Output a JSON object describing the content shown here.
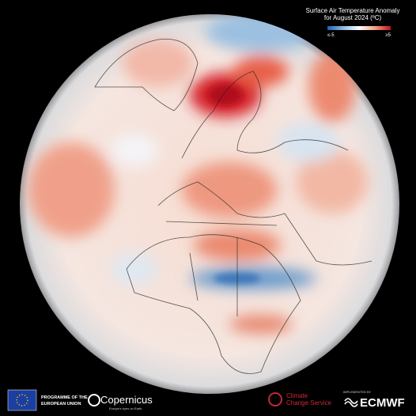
{
  "title": {
    "line1": "Surface Air Temperature Anomaly",
    "line2": "for August 2024 (ºC)"
  },
  "legend": {
    "min_label": "≤-5",
    "max_label": "≥5"
  },
  "footer": {
    "eu": {
      "line1": "PROGRAMME OF THE",
      "line2": "EUROPEAN UNION"
    },
    "copernicus": {
      "name": "Copernicus",
      "tagline": "Europe's eyes on Earth"
    },
    "c3s": {
      "line1": "Climate",
      "line2": "Change Service"
    },
    "ecmwf": {
      "caption": "IMPLEMENTED BY",
      "name": "ECMWF"
    }
  }
}
